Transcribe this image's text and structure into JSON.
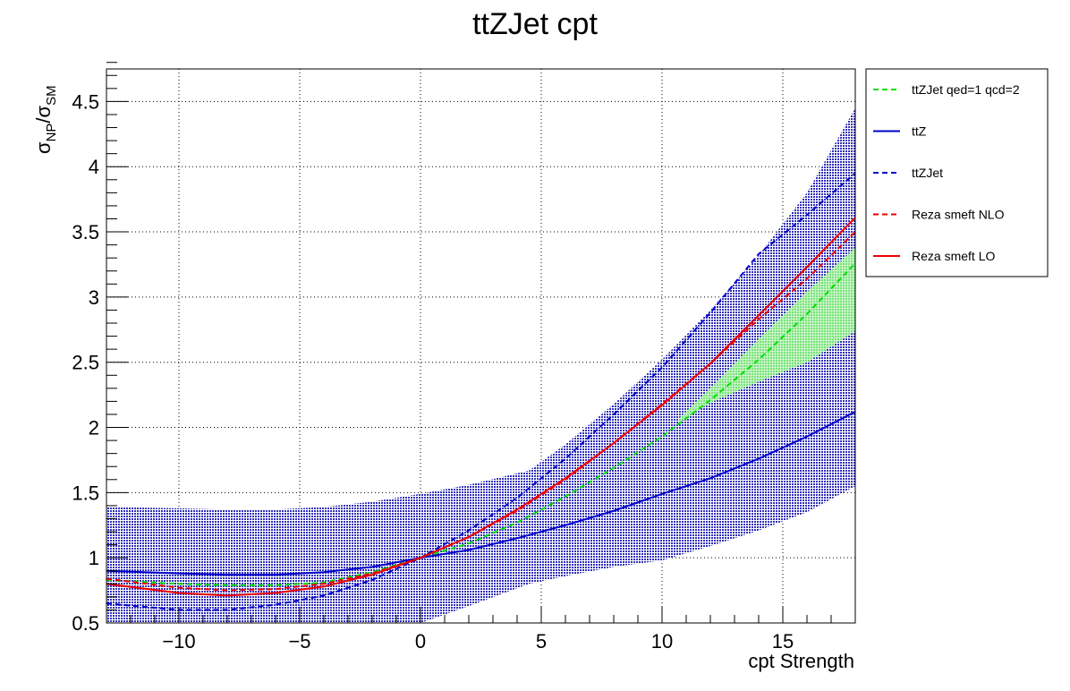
{
  "chart_data": {
    "type": "line",
    "title": "ttZJet cpt",
    "xlabel": "cpt Strength",
    "ylabel": {
      "sigma": "σ",
      "np_sub": "NP",
      "sm_sub": "SM"
    },
    "xlim": [
      -13,
      18
    ],
    "ylim": [
      0.5,
      4.75
    ],
    "x_ticks": [
      -10,
      -5,
      0,
      5,
      10,
      15
    ],
    "x_tick_labels": [
      "−10",
      "−5",
      "0",
      "5",
      "10",
      "15"
    ],
    "y_ticks": [
      0.5,
      1,
      1.5,
      2,
      2.5,
      3,
      3.5,
      4,
      4.5
    ],
    "y_tick_labels": [
      "0.5",
      "1",
      "1.5",
      "2",
      "2.5",
      "3",
      "3.5",
      "4",
      "4.5"
    ],
    "grid": true,
    "legend_position": "outside-right",
    "colors": {
      "green": "#00dd00",
      "blue": "#0000cc",
      "red": "#ee0000",
      "blue_band": "#3030bb",
      "green_band": "#99ee99"
    },
    "bands": [
      {
        "color": "blue_band",
        "x": [
          -13,
          -10,
          -8,
          -6,
          -4,
          -2,
          0,
          2,
          4.5,
          6,
          8,
          10,
          12,
          14,
          16,
          18
        ],
        "upper": [
          1.39,
          1.38,
          1.37,
          1.37,
          1.39,
          1.43,
          1.49,
          1.56,
          1.67,
          1.87,
          2.18,
          2.52,
          2.9,
          3.32,
          3.8,
          4.45
        ],
        "lower": [
          0.5,
          0.5,
          0.5,
          0.5,
          0.5,
          0.5,
          0.5,
          0.63,
          0.8,
          0.86,
          0.93,
          0.98,
          1.09,
          1.21,
          1.35,
          1.55
        ]
      },
      {
        "color": "green_band",
        "x": [
          10.7,
          12,
          14,
          16,
          18
        ],
        "upper": [
          2.07,
          2.3,
          2.68,
          3.04,
          3.38
        ],
        "lower": [
          2.04,
          2.19,
          2.35,
          2.5,
          2.74
        ]
      }
    ],
    "series": [
      {
        "name": "ttZJet qed=1 qcd=2",
        "color": "green",
        "dashed": true,
        "x": [
          -13,
          -10,
          -8,
          -6,
          -4,
          -2,
          0,
          2,
          4,
          6,
          8,
          10,
          12,
          14,
          16,
          18
        ],
        "y": [
          0.83,
          0.8,
          0.79,
          0.79,
          0.81,
          0.89,
          1.0,
          1.11,
          1.27,
          1.47,
          1.69,
          1.93,
          2.21,
          2.52,
          2.87,
          3.26
        ]
      },
      {
        "name": "ttZ",
        "color": "blue",
        "dashed": false,
        "x": [
          -13,
          -10,
          -8,
          -6,
          -4,
          -2,
          0,
          2,
          4,
          6,
          8,
          10,
          12,
          14,
          16,
          18
        ],
        "y": [
          0.9,
          0.88,
          0.87,
          0.87,
          0.89,
          0.93,
          1.0,
          1.06,
          1.15,
          1.25,
          1.36,
          1.49,
          1.61,
          1.76,
          1.93,
          2.12
        ]
      },
      {
        "name": "ttZJet",
        "color": "blue",
        "dashed": true,
        "x": [
          -13,
          -10,
          -8,
          -6,
          -4,
          -2,
          0,
          2,
          4,
          6,
          8,
          10,
          12,
          14,
          16,
          18
        ],
        "y": [
          0.65,
          0.6,
          0.6,
          0.64,
          0.71,
          0.83,
          1.0,
          1.21,
          1.46,
          1.76,
          2.1,
          2.46,
          2.88,
          3.33,
          3.63,
          3.95
        ]
      },
      {
        "name": "Reza smeft NLO",
        "color": "red",
        "dashed": true,
        "x": [
          -13,
          -10,
          -8,
          -6,
          -4,
          -2,
          0,
          2,
          4,
          6,
          8,
          10,
          12,
          14,
          16,
          18
        ],
        "y": [
          0.84,
          0.77,
          0.75,
          0.76,
          0.8,
          0.88,
          1.0,
          1.16,
          1.36,
          1.6,
          1.88,
          2.18,
          2.49,
          2.83,
          3.14,
          3.5
        ]
      },
      {
        "name": "Reza smeft LO",
        "color": "red",
        "dashed": false,
        "x": [
          -13,
          -10,
          -8,
          -6,
          -4,
          -2,
          0,
          2,
          4,
          6,
          8,
          10,
          12,
          14,
          16,
          18
        ],
        "y": [
          0.8,
          0.73,
          0.71,
          0.73,
          0.78,
          0.87,
          1.0,
          1.16,
          1.37,
          1.61,
          1.88,
          2.17,
          2.49,
          2.86,
          3.23,
          3.61
        ]
      }
    ]
  }
}
